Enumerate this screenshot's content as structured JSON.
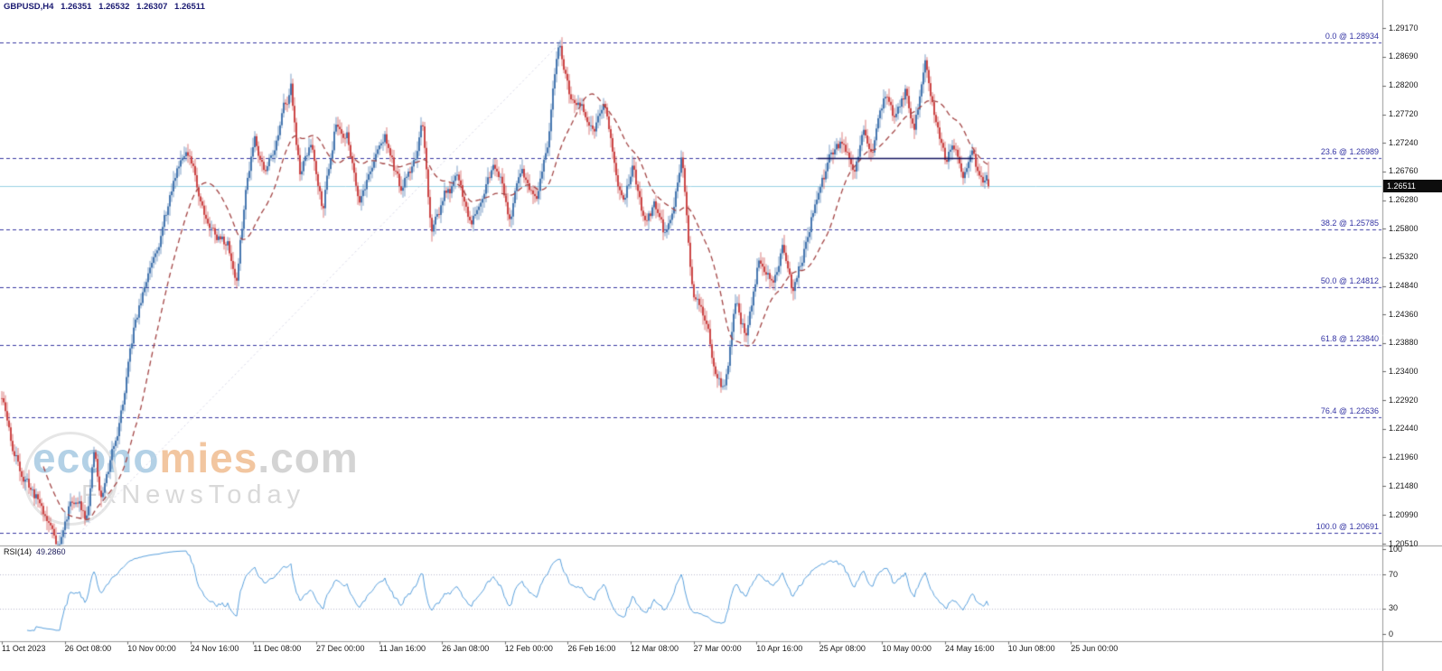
{
  "header": {
    "symbol_period": "GBPUSD,H4",
    "open": "1.26351",
    "high": "1.26532",
    "low": "1.26307",
    "close": "1.26511"
  },
  "watermark": {
    "part_blue": "econo",
    "part_orange": "mies",
    "part_gray": ".com",
    "line2": "FxNewsToday"
  },
  "price_axis": {
    "ticks": [
      "1.29170",
      "1.28690",
      "1.28200",
      "1.27720",
      "1.27240",
      "1.26760",
      "1.26280",
      "1.25800",
      "1.25320",
      "1.24840",
      "1.24360",
      "1.23880",
      "1.23400",
      "1.22920",
      "1.22440",
      "1.21960",
      "1.21480",
      "1.20990",
      "1.20510"
    ],
    "current_tag": "1.26511"
  },
  "time_axis": {
    "labels": [
      "11 Oct 2023",
      "26 Oct 08:00",
      "10 Nov 00:00",
      "24 Nov 16:00",
      "11 Dec 08:00",
      "27 Dec 00:00",
      "11 Jan 16:00",
      "26 Jan 08:00",
      "12 Feb 00:00",
      "26 Feb 16:00",
      "12 Mar 08:00",
      "27 Mar 00:00",
      "10 Apr 16:00",
      "25 Apr 08:00",
      "10 May 00:00",
      "24 May 16:00",
      "10 Jun 08:00",
      "25 Jun 00:00"
    ]
  },
  "rsi_panel": {
    "name": "RSI(14)",
    "value": "49.2860",
    "levels": [
      "100",
      "70",
      "30",
      "0"
    ]
  },
  "fib": {
    "labels": [
      {
        "text": "0.0 @ 1.28934",
        "price": 1.28934
      },
      {
        "text": "23.6 @ 1.26989",
        "price": 1.26989
      },
      {
        "text": "38.2 @ 1.25785",
        "price": 1.25785
      },
      {
        "text": "50.0 @ 1.24812",
        "price": 1.24812
      },
      {
        "text": "61.8 @ 1.23840",
        "price": 1.2384
      },
      {
        "text": "76.4 @ 1.22636",
        "price": 1.22636
      },
      {
        "text": "100.0 @ 1.20691",
        "price": 1.20691
      }
    ]
  },
  "chart_data": {
    "type": "candlestick",
    "title": "GBPUSD,H4",
    "symbol": "GBPUSD",
    "timeframe": "H4",
    "ohlc_current": {
      "open": 1.26351,
      "high": 1.26532,
      "low": 1.26307,
      "close": 1.26511
    },
    "ylim": [
      1.2051,
      1.2917
    ],
    "y_ticks": [
      1.2917,
      1.2869,
      1.282,
      1.2772,
      1.2724,
      1.2676,
      1.2628,
      1.258,
      1.2532,
      1.2484,
      1.2436,
      1.2388,
      1.234,
      1.2292,
      1.2244,
      1.2196,
      1.2148,
      1.2099,
      1.2051
    ],
    "x_labels": [
      "11 Oct 2023",
      "26 Oct 08:00",
      "10 Nov 00:00",
      "24 Nov 16:00",
      "11 Dec 08:00",
      "27 Dec 00:00",
      "11 Jan 16:00",
      "26 Jan 08:00",
      "12 Feb 00:00",
      "26 Feb 16:00",
      "12 Mar 08:00",
      "27 Mar 00:00",
      "10 Apr 16:00",
      "25 Apr 08:00",
      "10 May 00:00",
      "24 May 16:00",
      "10 Jun 08:00",
      "25 Jun 00:00"
    ],
    "fib_levels": [
      {
        "pct": "0.0",
        "price": 1.28934
      },
      {
        "pct": "23.6",
        "price": 1.26989
      },
      {
        "pct": "38.2",
        "price": 1.25785
      },
      {
        "pct": "50.0",
        "price": 1.24812
      },
      {
        "pct": "61.8",
        "price": 1.2384
      },
      {
        "pct": "76.4",
        "price": 1.22636
      },
      {
        "pct": "100.0",
        "price": 1.20691
      }
    ],
    "fib_baseline": {
      "from": [
        0.079,
        1.20691
      ],
      "to": [
        0.567,
        1.28934
      ]
    },
    "resistance_line": {
      "from_frac": 0.827,
      "to_frac": 0.985,
      "price": 1.2699
    },
    "moving_average": {
      "kind": "dashed-SMA",
      "period": 24
    },
    "indicator": {
      "name": "RSI",
      "period": 14,
      "current": 49.286,
      "levels": [
        100,
        70,
        30,
        0
      ]
    },
    "price_path": [
      [
        0.0,
        1.2295
      ],
      [
        0.012,
        1.22
      ],
      [
        0.026,
        1.2155
      ],
      [
        0.039,
        1.212
      ],
      [
        0.058,
        1.2052
      ],
      [
        0.071,
        1.213
      ],
      [
        0.085,
        1.2105
      ],
      [
        0.094,
        1.2215
      ],
      [
        0.1,
        1.212
      ],
      [
        0.112,
        1.22
      ],
      [
        0.126,
        1.232
      ],
      [
        0.135,
        1.241
      ],
      [
        0.146,
        1.248
      ],
      [
        0.158,
        1.257
      ],
      [
        0.172,
        1.264
      ],
      [
        0.186,
        1.273
      ],
      [
        0.199,
        1.264
      ],
      [
        0.213,
        1.259
      ],
      [
        0.229,
        1.256
      ],
      [
        0.238,
        1.25
      ],
      [
        0.247,
        1.264
      ],
      [
        0.256,
        1.275
      ],
      [
        0.268,
        1.269
      ],
      [
        0.282,
        1.276
      ],
      [
        0.293,
        1.282
      ],
      [
        0.302,
        1.268
      ],
      [
        0.314,
        1.272
      ],
      [
        0.325,
        1.263
      ],
      [
        0.338,
        1.277
      ],
      [
        0.35,
        1.275
      ],
      [
        0.362,
        1.265
      ],
      [
        0.375,
        1.27
      ],
      [
        0.389,
        1.274
      ],
      [
        0.405,
        1.263
      ],
      [
        0.417,
        1.268
      ],
      [
        0.426,
        1.274
      ],
      [
        0.435,
        1.256
      ],
      [
        0.448,
        1.263
      ],
      [
        0.463,
        1.265
      ],
      [
        0.475,
        1.259
      ],
      [
        0.49,
        1.268
      ],
      [
        0.503,
        1.27
      ],
      [
        0.515,
        1.262
      ],
      [
        0.528,
        1.268
      ],
      [
        0.543,
        1.26
      ],
      [
        0.554,
        1.272
      ],
      [
        0.565,
        1.289
      ],
      [
        0.576,
        1.279
      ],
      [
        0.588,
        1.277
      ],
      [
        0.6,
        1.272
      ],
      [
        0.609,
        1.28
      ],
      [
        0.62,
        1.272
      ],
      [
        0.631,
        1.261
      ],
      [
        0.64,
        1.267
      ],
      [
        0.651,
        1.257
      ],
      [
        0.662,
        1.262
      ],
      [
        0.671,
        1.256
      ],
      [
        0.682,
        1.263
      ],
      [
        0.689,
        1.269
      ],
      [
        0.7,
        1.248
      ],
      [
        0.711,
        1.242
      ],
      [
        0.722,
        1.234
      ],
      [
        0.733,
        1.23
      ],
      [
        0.744,
        1.244
      ],
      [
        0.755,
        1.239
      ],
      [
        0.768,
        1.254
      ],
      [
        0.781,
        1.249
      ],
      [
        0.792,
        1.256
      ],
      [
        0.802,
        1.246
      ],
      [
        0.815,
        1.255
      ],
      [
        0.828,
        1.265
      ],
      [
        0.841,
        1.27
      ],
      [
        0.854,
        1.272
      ],
      [
        0.865,
        1.265
      ],
      [
        0.874,
        1.275
      ],
      [
        0.883,
        1.27
      ],
      [
        0.894,
        1.278
      ],
      [
        0.905,
        1.274
      ],
      [
        0.916,
        1.28
      ],
      [
        0.925,
        1.275
      ],
      [
        0.936,
        1.2855
      ],
      [
        0.947,
        1.276
      ],
      [
        0.956,
        1.27
      ],
      [
        0.965,
        1.2725
      ],
      [
        0.974,
        1.269
      ],
      [
        0.983,
        1.27
      ],
      [
        0.992,
        1.263
      ],
      [
        1.0,
        1.26511
      ]
    ],
    "colors": {
      "up": "#4878b0",
      "down": "#cc4747",
      "ma": "#a34545",
      "fib": "#3737a0",
      "current_line": "#9ad1e4",
      "trend": "#12125e",
      "rsi": "#5aa0dc"
    },
    "render": {
      "candles": 547,
      "seed": 11,
      "wobble_gain": 0.0022,
      "wobble_decay": 0.88,
      "wick_min": 0.0004,
      "wick_rand": 0.0013,
      "clamp": [
        1.205,
        1.2905
      ]
    }
  }
}
